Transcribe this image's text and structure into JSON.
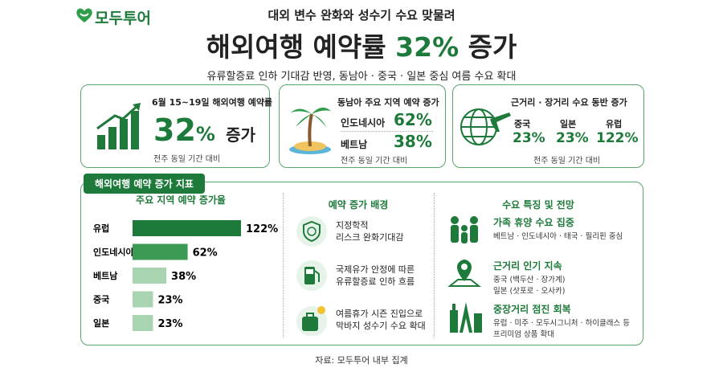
{
  "header": {
    "logo": "모두투어",
    "subtitle": "대외 변수 완화와 성수기 수요 맞물려",
    "title_before": "해외여행 예약률",
    "title_highlight": "32%",
    "title_after": "증가",
    "description": "유류할증료 인하 기대감 반영, 동남아 · 중국 · 일본 중심 여름 수요 확대"
  },
  "cards": [
    {
      "label": "6월 15~19일 해외여행 예약률",
      "value": "32",
      "unit": "%",
      "suffix": "증가",
      "note": "전주 동일 기간 대비"
    },
    {
      "label": "동남아 주요 지역 예약 증가",
      "rows": [
        [
          "인도네시아",
          "62%"
        ],
        [
          "베트남",
          "38%"
        ]
      ],
      "note": "전주 동일 기간 대비"
    },
    {
      "label": "근거리 · 장거리 수요 동반 증가",
      "items": [
        [
          "중국",
          "23%"
        ],
        [
          "일본",
          "23%"
        ],
        [
          "유럽",
          "122%"
        ]
      ],
      "note": "전주 동일 기간 대비"
    }
  ],
  "section": {
    "tab": "해외여행 예약 증가 지표",
    "background": {
      "title": "예약 증가 배경",
      "items": [
        [
          "지정학적",
          "리스크 완화기대감"
        ],
        [
          "국제유가 안정에 따른",
          "유류할증료 인하 흐름"
        ],
        [
          "여름휴가 시즌 진입으로",
          "막바지 성수기 수요 확대"
        ]
      ]
    },
    "outlook": {
      "title": "수요 특징 및 전망",
      "items": [
        {
          "title": "가족 휴양 수요 집중",
          "lines": [
            "베트남 · 인도네시아 · 태국 · 필리핀 중심"
          ]
        },
        {
          "title": "근거리 인기 지속",
          "lines": [
            "중국 (백두산 · 장가계)",
            "일본 (삿포로 · 오사카)"
          ]
        },
        {
          "title": "중장거리 점진 회복",
          "lines": [
            "유럽 · 미주 · 모두시그니처 · 하이클래스 등",
            "프리미엄 상품 확대"
          ]
        }
      ]
    }
  },
  "chart_data": {
    "type": "bar",
    "orientation": "horizontal",
    "title": "주요 지역 예약 증가율",
    "categories": [
      "유럽",
      "인도네시아",
      "베트남",
      "중국",
      "일본"
    ],
    "values": [
      122,
      62,
      38,
      23,
      23
    ],
    "value_labels": [
      "122%",
      "62%",
      "38%",
      "23%",
      "23%"
    ],
    "colors": [
      "#1d7a3a",
      "#3d9a55",
      "#a9d4b2",
      "#a9d4b2",
      "#a9d4b2"
    ]
  },
  "footer": {
    "source": "자료: 모두투어 내부 집계"
  }
}
